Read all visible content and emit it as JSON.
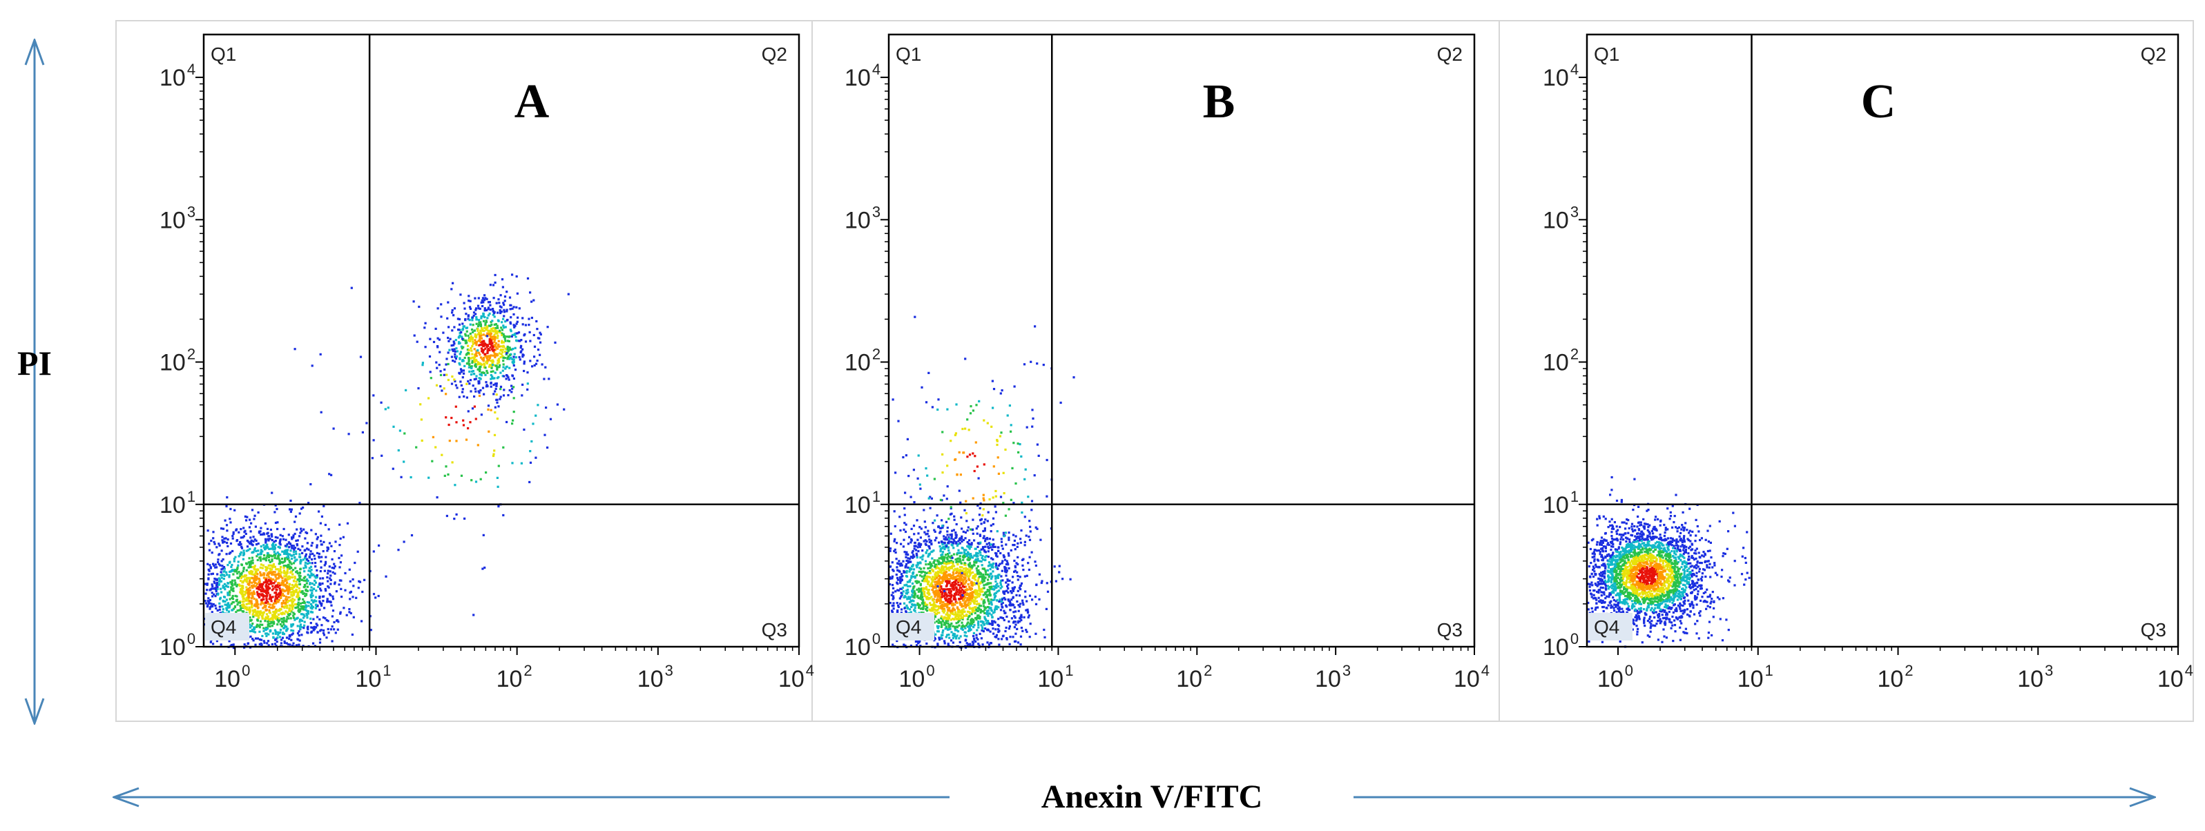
{
  "figure": {
    "y_axis_label": "PI",
    "x_axis_label": "Anexin V/FITC",
    "arrow_color": "#4a86b8"
  },
  "chart_data": [
    {
      "type": "scatter",
      "panel_label": "A",
      "x_scale": "log",
      "y_scale": "log",
      "xlim": [
        0.6,
        10000
      ],
      "ylim": [
        1,
        20000
      ],
      "x_ticks": [
        {
          "base": "10",
          "exp": "0"
        },
        {
          "base": "10",
          "exp": "1"
        },
        {
          "base": "10",
          "exp": "2"
        },
        {
          "base": "10",
          "exp": "3"
        },
        {
          "base": "10",
          "exp": "4"
        }
      ],
      "y_ticks": [
        {
          "base": "10",
          "exp": "0"
        },
        {
          "base": "10",
          "exp": "1"
        },
        {
          "base": "10",
          "exp": "2"
        },
        {
          "base": "10",
          "exp": "3"
        },
        {
          "base": "10",
          "exp": "4"
        }
      ],
      "gate": {
        "x": 9,
        "y": 10
      },
      "quadrants": [
        "Q1",
        "Q2",
        "Q3",
        "Q4"
      ],
      "populations": [
        {
          "center_x": 1.7,
          "center_y": 2.5,
          "count": 2200,
          "spread_x": 0.26,
          "spread_y": 0.24
        },
        {
          "center_x": 60,
          "center_y": 130,
          "count": 800,
          "spread_x": 0.16,
          "spread_y": 0.17
        },
        {
          "center_x": 40,
          "center_y": 40,
          "count": 160,
          "spread_x": 0.4,
          "spread_y": 0.4
        }
      ]
    },
    {
      "type": "scatter",
      "panel_label": "B",
      "x_scale": "log",
      "y_scale": "log",
      "xlim": [
        0.6,
        10000
      ],
      "ylim": [
        1,
        20000
      ],
      "x_ticks": [
        {
          "base": "10",
          "exp": "0"
        },
        {
          "base": "10",
          "exp": "1"
        },
        {
          "base": "10",
          "exp": "2"
        },
        {
          "base": "10",
          "exp": "3"
        },
        {
          "base": "10",
          "exp": "4"
        }
      ],
      "y_ticks": [
        {
          "base": "10",
          "exp": "0"
        },
        {
          "base": "10",
          "exp": "1"
        },
        {
          "base": "10",
          "exp": "2"
        },
        {
          "base": "10",
          "exp": "3"
        },
        {
          "base": "10",
          "exp": "4"
        }
      ],
      "gate": {
        "x": 9,
        "y": 10
      },
      "quadrants": [
        "Q1",
        "Q2",
        "Q3",
        "Q4"
      ],
      "populations": [
        {
          "center_x": 1.7,
          "center_y": 2.5,
          "count": 2600,
          "spread_x": 0.26,
          "spread_y": 0.24
        },
        {
          "center_x": 2.5,
          "center_y": 18,
          "count": 170,
          "spread_x": 0.3,
          "spread_y": 0.42
        }
      ]
    },
    {
      "type": "scatter",
      "panel_label": "C",
      "x_scale": "log",
      "y_scale": "log",
      "xlim": [
        0.6,
        10000
      ],
      "ylim": [
        1,
        20000
      ],
      "x_ticks": [
        {
          "base": "10",
          "exp": "0"
        },
        {
          "base": "10",
          "exp": "1"
        },
        {
          "base": "10",
          "exp": "2"
        },
        {
          "base": "10",
          "exp": "3"
        },
        {
          "base": "10",
          "exp": "4"
        }
      ],
      "y_ticks": [
        {
          "base": "10",
          "exp": "0"
        },
        {
          "base": "10",
          "exp": "1"
        },
        {
          "base": "10",
          "exp": "2"
        },
        {
          "base": "10",
          "exp": "3"
        },
        {
          "base": "10",
          "exp": "4"
        }
      ],
      "gate": {
        "x": 9,
        "y": 10
      },
      "quadrants": [
        "Q1",
        "Q2",
        "Q3",
        "Q4"
      ],
      "populations": [
        {
          "center_x": 1.6,
          "center_y": 3.2,
          "count": 2600,
          "spread_x": 0.22,
          "spread_y": 0.18
        }
      ]
    }
  ]
}
